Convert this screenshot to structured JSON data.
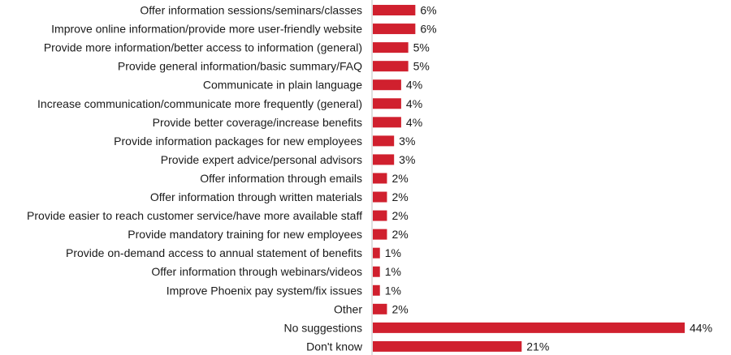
{
  "chart_data": {
    "type": "bar",
    "orientation": "horizontal",
    "categories": [
      "Offer information sessions/seminars/classes",
      "Improve online information/provide more user-friendly website",
      "Provide more information/better access to information (general)",
      "Provide general information/basic summary/FAQ",
      "Communicate in plain language",
      "Increase communication/communicate more frequently (general)",
      "Provide better coverage/increase benefits",
      "Provide information packages for new employees",
      "Provide expert advice/personal advisors",
      "Offer information through emails",
      "Offer information through written materials",
      "Provide easier to reach customer service/have more available staff",
      "Provide mandatory training for new employees",
      "Provide on-demand access to annual statement of benefits",
      "Offer information through webinars/videos",
      "Improve Phoenix pay system/fix issues",
      "Other",
      "No suggestions",
      "Don't know"
    ],
    "values": [
      6,
      6,
      5,
      5,
      4,
      4,
      4,
      3,
      3,
      2,
      2,
      2,
      2,
      1,
      1,
      1,
      2,
      44,
      21
    ],
    "value_labels": [
      "6%",
      "6%",
      "5%",
      "5%",
      "4%",
      "4%",
      "4%",
      "3%",
      "3%",
      "2%",
      "2%",
      "2%",
      "2%",
      "1%",
      "1%",
      "1%",
      "2%",
      "44%",
      "21%"
    ],
    "unit": "%",
    "bar_color": "#d0202e",
    "axis_color": "#bfbfbf",
    "xlim": [
      0,
      44
    ],
    "grid": false,
    "legend": "none"
  }
}
